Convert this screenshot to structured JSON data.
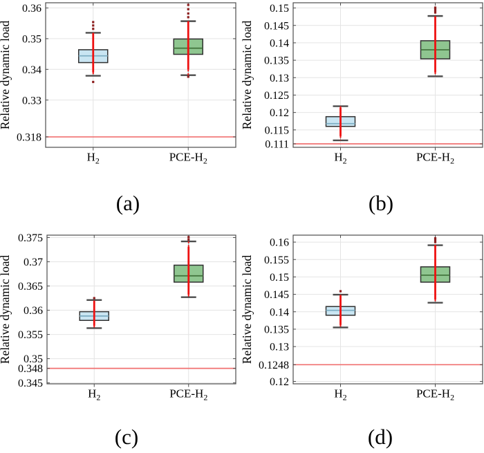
{
  "figure": {
    "background": "#ffffff",
    "colors": {
      "grid": "#e4e4e4",
      "axis": "#4c4c4c",
      "cap": "#4c4c4c",
      "whisker": "#9a9a9a",
      "box_edge": "#303030",
      "red": "#ee1111",
      "outlier": "#8e2020",
      "refline": "#f07070",
      "text": "#000000"
    }
  },
  "chart_data": [
    {
      "id": "a",
      "type": "boxplot",
      "caption": "(a)",
      "ylabel": "Relative dynamic load",
      "ylim": [
        0.3146,
        0.3617
      ],
      "refline_value": 0.318,
      "grid": true,
      "legend": "none",
      "yticks": [
        {
          "value": 0.318,
          "label": "0.318",
          "grid": false,
          "special": true
        },
        {
          "value": 0.33,
          "label": "0.33",
          "grid": true
        },
        {
          "value": 0.34,
          "label": "0.34",
          "grid": true
        },
        {
          "value": 0.35,
          "label": "0.35",
          "grid": true
        },
        {
          "value": 0.36,
          "label": "0.36",
          "grid": true
        }
      ],
      "categories": [
        {
          "base": "H",
          "sub": "2"
        },
        {
          "base": "PCE-H",
          "sub": "2"
        }
      ],
      "boxes": [
        {
          "name": "H2",
          "fill": "#c9e5f2",
          "median_color": "#7fafc4",
          "whisker_lo": 0.3379,
          "q1": 0.3422,
          "median": 0.3444,
          "q3": 0.3464,
          "whisker_hi": 0.3519,
          "red_span": [
            0.339,
            0.3519
          ],
          "outliers": [
            0.3532,
            0.3543,
            0.3554,
            0.3359
          ]
        },
        {
          "name": "PCE-H2",
          "fill": "#8fc690",
          "median_color": "#44763f",
          "whisker_lo": 0.3381,
          "q1": 0.3449,
          "median": 0.3469,
          "q3": 0.3499,
          "whisker_hi": 0.3557,
          "red_span": [
            0.3399,
            0.3557
          ],
          "outliers": [
            0.357,
            0.3582,
            0.3596,
            0.361,
            0.3376
          ]
        }
      ]
    },
    {
      "id": "b",
      "type": "boxplot",
      "caption": "(b)",
      "ylabel": "Relative dynamic load",
      "ylim": [
        0.11,
        0.1515
      ],
      "refline_value": 0.111,
      "grid": true,
      "legend": "none",
      "yticks": [
        {
          "value": 0.111,
          "label": "0.111",
          "grid": false,
          "special": true
        },
        {
          "value": 0.115,
          "label": "0.115",
          "grid": true
        },
        {
          "value": 0.12,
          "label": "0.12",
          "grid": true
        },
        {
          "value": 0.125,
          "label": "0.125",
          "grid": true
        },
        {
          "value": 0.13,
          "label": "0.13",
          "grid": true
        },
        {
          "value": 0.135,
          "label": "0.135",
          "grid": true
        },
        {
          "value": 0.14,
          "label": "0.14",
          "grid": true
        },
        {
          "value": 0.145,
          "label": "0.145",
          "grid": true
        },
        {
          "value": 0.15,
          "label": "0.15",
          "grid": true
        }
      ],
      "categories": [
        {
          "base": "H",
          "sub": "2"
        },
        {
          "base": "PCE-H",
          "sub": "2"
        }
      ],
      "boxes": [
        {
          "name": "H2",
          "fill": "#c9e5f2",
          "median_color": "#7fafc4",
          "whisker_lo": 0.112,
          "q1": 0.116,
          "median": 0.1168,
          "q3": 0.1188,
          "whisker_hi": 0.1218,
          "red_span": [
            0.1132,
            0.1214
          ],
          "outliers": []
        },
        {
          "name": "PCE-H2",
          "fill": "#8fc690",
          "median_color": "#44763f",
          "whisker_lo": 0.1304,
          "q1": 0.1354,
          "median": 0.138,
          "q3": 0.1406,
          "whisker_hi": 0.1477,
          "red_span": [
            0.1315,
            0.1475
          ],
          "outliers": [
            0.1487,
            0.1492,
            0.1497,
            0.1501
          ]
        }
      ]
    },
    {
      "id": "c",
      "type": "boxplot",
      "caption": "(c)",
      "ylabel": "Relative dynamic load",
      "ylim": [
        0.3448,
        0.3755
      ],
      "refline_value": 0.348,
      "grid": true,
      "legend": "none",
      "yticks": [
        {
          "value": 0.345,
          "label": "0.345",
          "grid": true
        },
        {
          "value": 0.348,
          "label": "0.348",
          "grid": false,
          "special": true
        },
        {
          "value": 0.35,
          "label": "0.35",
          "grid": true
        },
        {
          "value": 0.355,
          "label": "0.355",
          "grid": true
        },
        {
          "value": 0.36,
          "label": "0.36",
          "grid": true
        },
        {
          "value": 0.365,
          "label": "0.365",
          "grid": true
        },
        {
          "value": 0.37,
          "label": "0.37",
          "grid": true
        },
        {
          "value": 0.375,
          "label": "0.375",
          "grid": true
        }
      ],
      "categories": [
        {
          "base": "H",
          "sub": "2"
        },
        {
          "base": "PCE-H",
          "sub": "2"
        }
      ],
      "boxes": [
        {
          "name": "H2",
          "fill": "#c9e5f2",
          "median_color": "#7fafc4",
          "whisker_lo": 0.3563,
          "q1": 0.3579,
          "median": 0.3588,
          "q3": 0.3597,
          "whisker_hi": 0.3621,
          "red_span": [
            0.3568,
            0.362
          ],
          "outliers": [
            0.3625
          ]
        },
        {
          "name": "PCE-H2",
          "fill": "#8fc690",
          "median_color": "#44763f",
          "whisker_lo": 0.3627,
          "q1": 0.3658,
          "median": 0.3671,
          "q3": 0.3693,
          "whisker_hi": 0.3742,
          "red_span": [
            0.3632,
            0.3731
          ],
          "outliers": [
            0.3746,
            0.3751
          ]
        }
      ]
    },
    {
      "id": "d",
      "type": "boxplot",
      "caption": "(d)",
      "ylabel": "Relative dynamic load",
      "ylim": [
        0.1193,
        0.162
      ],
      "refline_value": 0.1248,
      "grid": true,
      "legend": "none",
      "yticks": [
        {
          "value": 0.12,
          "label": "0.12",
          "grid": true
        },
        {
          "value": 0.1248,
          "label": "0.1248",
          "grid": false,
          "special": true
        },
        {
          "value": 0.13,
          "label": "0.13",
          "grid": true
        },
        {
          "value": 0.135,
          "label": "0.135",
          "grid": true
        },
        {
          "value": 0.14,
          "label": "0.14",
          "grid": true
        },
        {
          "value": 0.145,
          "label": "0.145",
          "grid": true
        },
        {
          "value": 0.15,
          "label": "0.15",
          "grid": true
        },
        {
          "value": 0.155,
          "label": "0.155",
          "grid": true
        },
        {
          "value": 0.16,
          "label": "0.16",
          "grid": true
        }
      ],
      "categories": [
        {
          "base": "H",
          "sub": "2"
        },
        {
          "base": "PCE-H",
          "sub": "2"
        }
      ],
      "boxes": [
        {
          "name": "H2",
          "fill": "#c9e5f2",
          "median_color": "#7fafc4",
          "whisker_lo": 0.1355,
          "q1": 0.139,
          "median": 0.1404,
          "q3": 0.1415,
          "whisker_hi": 0.1449,
          "red_span": [
            0.1362,
            0.1447
          ],
          "outliers": [
            0.1459
          ]
        },
        {
          "name": "PCE-H2",
          "fill": "#8fc690",
          "median_color": "#44763f",
          "whisker_lo": 0.1426,
          "q1": 0.1485,
          "median": 0.1505,
          "q3": 0.1529,
          "whisker_hi": 0.1591,
          "red_span": [
            0.1435,
            0.1592
          ],
          "outliers": [
            0.16,
            0.1606,
            0.1611
          ]
        }
      ]
    }
  ]
}
